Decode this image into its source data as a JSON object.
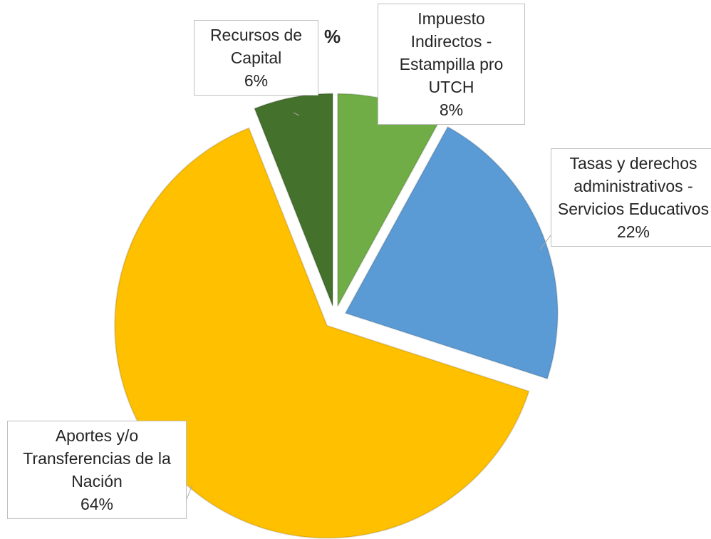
{
  "chart_data": {
    "type": "pie",
    "title": "%",
    "categories": [
      "Impuesto Indirectos - Estampilla pro UTCH",
      "Tasas y derechos administrativos - Servicios Educativos",
      "Aportes y/o Transferencias de la Nación",
      "Recursos de Capital"
    ],
    "values": [
      8,
      22,
      64,
      6
    ],
    "value_labels": [
      "8%",
      "22%",
      "64%",
      "6%"
    ],
    "colors": [
      "#70ad47",
      "#5b9bd5",
      "#ffc000",
      "#44712b"
    ]
  }
}
